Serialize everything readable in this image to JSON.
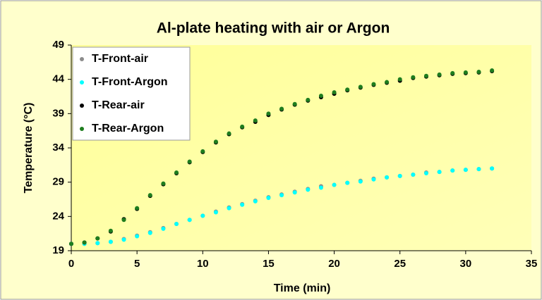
{
  "chart_data": {
    "type": "scatter",
    "title": "Al-plate heating with air or Argon",
    "x_label": "Time (min)",
    "y_label": "Temperature (°C)",
    "x": [
      0,
      1,
      2,
      3,
      4,
      5,
      6,
      7,
      8,
      9,
      10,
      11,
      12,
      13,
      14,
      15,
      16,
      17,
      18,
      19,
      20,
      21,
      22,
      23,
      24,
      25,
      26,
      27,
      28,
      29,
      30,
      31,
      32
    ],
    "series": [
      {
        "name": "T-Front-air",
        "color": "#8c8c8c",
        "values": [
          20,
          20,
          20.1,
          20.3,
          20.7,
          21.2,
          21.7,
          22.3,
          22.9,
          23.5,
          24.1,
          24.7,
          25.3,
          25.8,
          26.3,
          26.8,
          27.2,
          27.6,
          28.0,
          28.4,
          28.6,
          28.9,
          29.2,
          29.5,
          29.7,
          29.9,
          30.1,
          30.4,
          30.5,
          30.7,
          30.8,
          30.9,
          31.0
        ]
      },
      {
        "name": "T-Front-Argon",
        "color": "#00ffff",
        "values": [
          20,
          20,
          20.1,
          20.3,
          20.6,
          21.1,
          21.6,
          22.2,
          22.9,
          23.5,
          24.1,
          24.6,
          25.2,
          25.7,
          26.2,
          26.7,
          27.1,
          27.5,
          27.9,
          28.2,
          28.6,
          28.9,
          29.1,
          29.4,
          29.7,
          29.9,
          30.1,
          30.3,
          30.5,
          30.7,
          30.8,
          30.9,
          31.0
        ]
      },
      {
        "name": "T-Rear-air",
        "color": "#000000",
        "values": [
          20,
          20.2,
          20.8,
          21.8,
          23.6,
          25.1,
          27.0,
          28.7,
          30.3,
          31.9,
          33.4,
          34.8,
          36.0,
          37.0,
          37.8,
          38.8,
          39.6,
          40.3,
          40.9,
          41.4,
          41.9,
          42.4,
          42.8,
          43.2,
          43.5,
          43.8,
          44.2,
          44.4,
          44.6,
          44.8,
          44.9,
          45.0,
          45.2
        ]
      },
      {
        "name": "T-Rear-Argon",
        "color": "#1e7d1e",
        "values": [
          20,
          20.2,
          20.8,
          21.9,
          23.5,
          25.2,
          27.1,
          28.8,
          30.4,
          32.0,
          33.5,
          34.9,
          36.1,
          37.1,
          38.0,
          39.0,
          39.7,
          40.4,
          41.0,
          41.6,
          42.1,
          42.5,
          42.9,
          43.3,
          43.6,
          44.0,
          44.3,
          44.5,
          44.7,
          44.9,
          45.0,
          45.1,
          45.3
        ]
      }
    ],
    "xlim": [
      0,
      35
    ],
    "xticks": [
      0,
      5,
      10,
      15,
      20,
      25,
      30,
      35
    ],
    "ylim": [
      19,
      49
    ],
    "yticks": [
      19,
      24,
      29,
      34,
      39,
      44,
      49
    ],
    "legend": "upper left"
  }
}
